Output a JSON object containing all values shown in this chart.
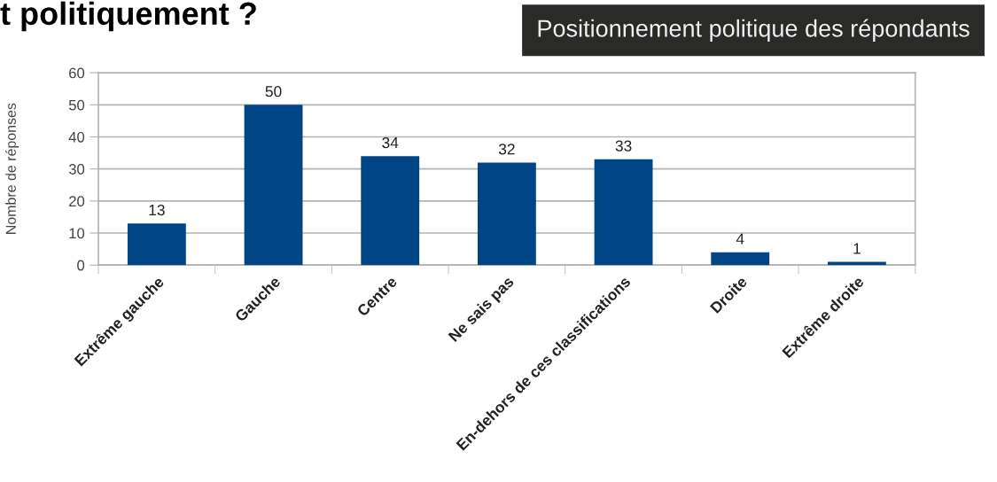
{
  "chart_data": {
    "type": "bar",
    "title": "t politiquement ?",
    "subtitle": "Positionnement politique des répondants",
    "ylabel": "Nombre de réponses",
    "categories": [
      "Extrême gauche",
      "Gauche",
      "Centre",
      "Ne sais pas",
      "En-dehors de ces classifications",
      "Droite",
      "Extrême droite"
    ],
    "values": [
      13,
      50,
      34,
      32,
      33,
      4,
      1
    ],
    "color": "#004586",
    "ylim": [
      0,
      60
    ],
    "yticks": [
      0,
      10,
      20,
      30,
      40,
      50,
      60
    ],
    "grid": "y",
    "data_labels": true
  }
}
